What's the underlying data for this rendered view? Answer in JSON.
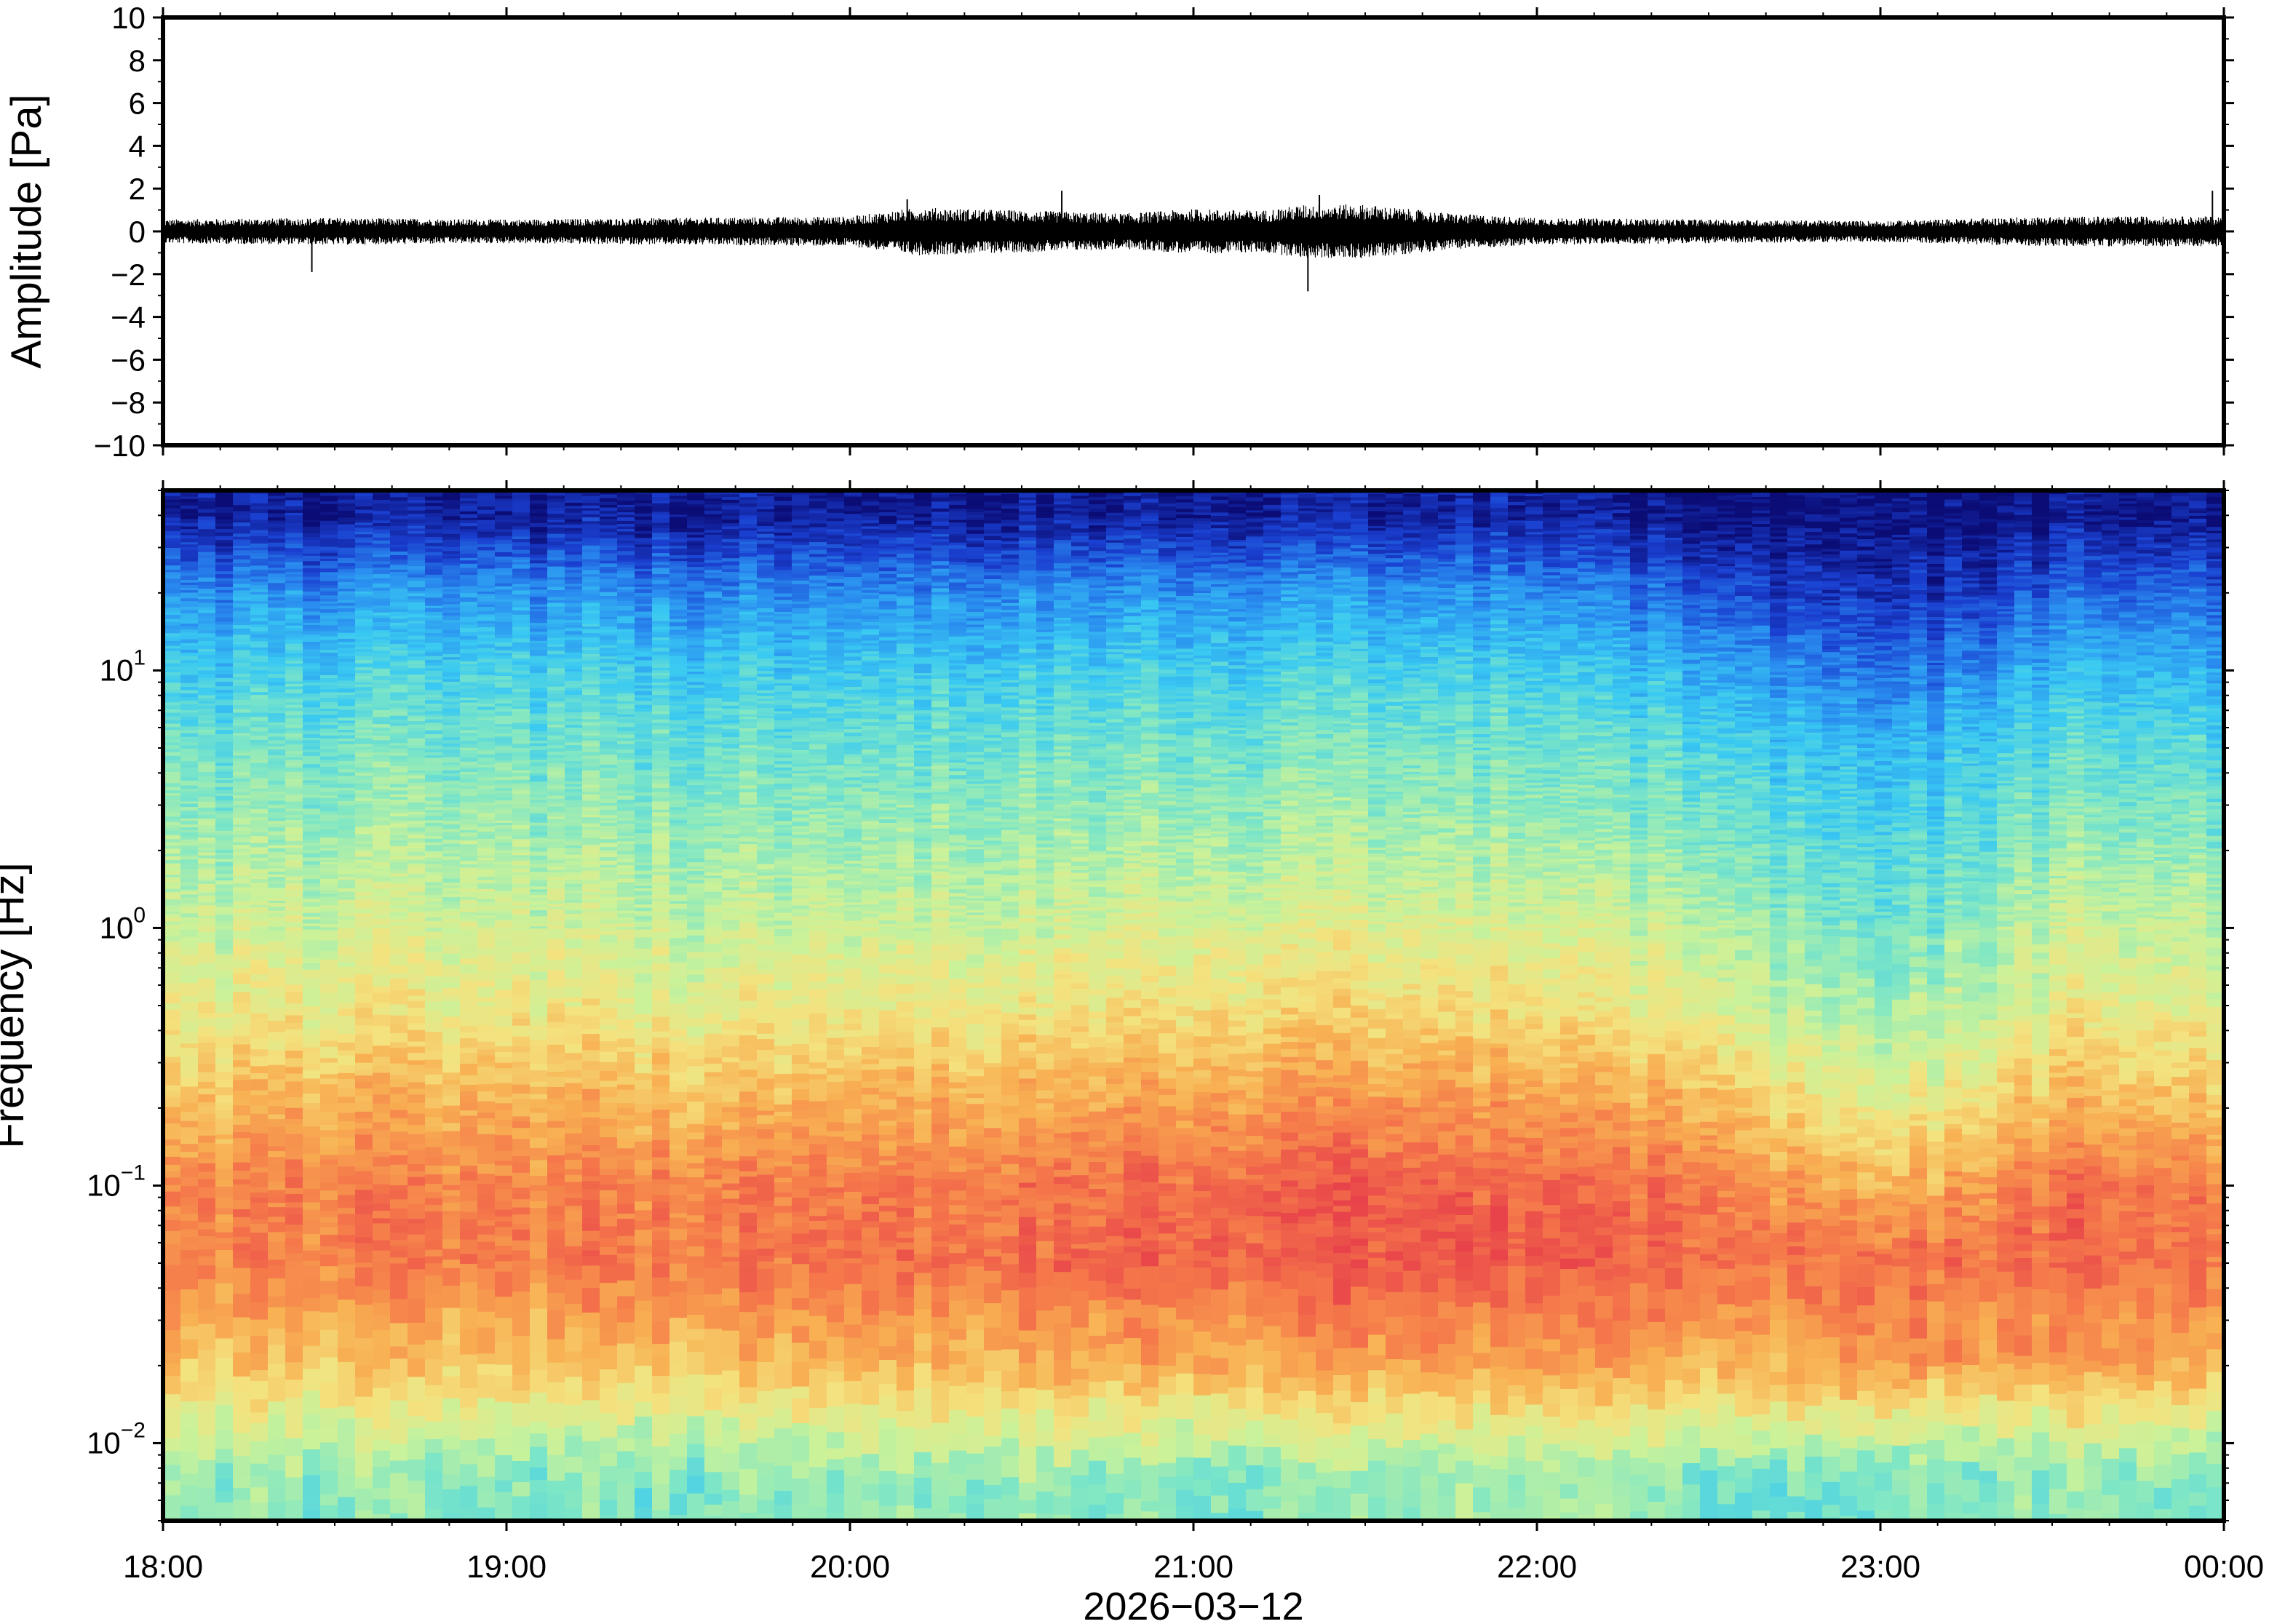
{
  "chart_data": [
    {
      "type": "line",
      "panel": "waveform",
      "ylabel": "Amplitude [Pa]",
      "ylim": [
        -10,
        10
      ],
      "yticks": [
        10,
        8,
        6,
        4,
        2,
        0,
        -2,
        -4,
        -6,
        -8,
        -10
      ],
      "ytick_labels": [
        "10",
        "8",
        "6",
        "4",
        "2",
        "0",
        "−2",
        "−4",
        "−6",
        "−8",
        "−10"
      ],
      "xlim": [
        "18:00",
        "00:00"
      ],
      "envelope": {
        "time_hours": [
          0.0,
          0.5,
          1.0,
          1.5,
          2.0,
          2.2,
          2.5,
          2.8,
          3.0,
          3.2,
          3.33,
          3.5,
          3.75,
          4.0,
          4.5,
          5.0,
          5.5,
          6.0
        ],
        "typical_amplitude_pa": [
          0.4,
          0.45,
          0.4,
          0.45,
          0.5,
          0.8,
          0.7,
          0.6,
          0.75,
          0.7,
          0.9,
          0.9,
          0.6,
          0.45,
          0.4,
          0.35,
          0.5,
          0.5
        ]
      },
      "spikes": [
        {
          "time": "18:26",
          "amplitude_pa": -1.9
        },
        {
          "time": "20:10",
          "amplitude_pa": 1.5
        },
        {
          "time": "20:37",
          "amplitude_pa": 1.9
        },
        {
          "time": "21:20",
          "amplitude_pa": -2.8
        },
        {
          "time": "21:22",
          "amplitude_pa": 1.7
        },
        {
          "time": "23:58",
          "amplitude_pa": 1.9
        }
      ]
    },
    {
      "type": "heatmap",
      "panel": "spectrogram",
      "ylabel": "Frequency [Hz]",
      "yscale": "log",
      "ylim": [
        0.005,
        50
      ],
      "yticks": [
        0.01,
        0.1,
        1,
        10
      ],
      "ytick_labels": [
        {
          "base": "10",
          "exp": "−2"
        },
        {
          "base": "10",
          "exp": "−1"
        },
        {
          "base": "10",
          "exp": "0"
        },
        {
          "base": "10",
          "exp": "1"
        }
      ],
      "xlabel": "2026−03−12",
      "xlim": [
        "18:00",
        "00:00"
      ],
      "xticks": [
        "18:00",
        "19:00",
        "20:00",
        "21:00",
        "22:00",
        "23:00",
        "00:00"
      ],
      "colormap": [
        "#0b0c75",
        "#1a3fd0",
        "#2a8ef0",
        "#39c9f2",
        "#7de6c6",
        "#c9f29a",
        "#f4e27e",
        "#f8b052",
        "#f5784a",
        "#e8434a"
      ],
      "time_bins_hours": [
        0.0,
        0.5,
        1.0,
        1.5,
        2.0,
        2.5,
        3.0,
        3.5,
        4.0,
        4.5,
        5.0,
        5.5,
        6.0
      ],
      "freq_bins_hz": [
        0.007,
        0.01,
        0.02,
        0.05,
        0.1,
        0.2,
        0.5,
        1,
        2,
        5,
        10,
        20,
        40
      ],
      "relative_power": [
        [
          0.48,
          0.48,
          0.45,
          0.45,
          0.48,
          0.5,
          0.45,
          0.48,
          0.5,
          0.45,
          0.42,
          0.48,
          0.45
        ],
        [
          0.55,
          0.55,
          0.52,
          0.52,
          0.55,
          0.58,
          0.55,
          0.55,
          0.58,
          0.55,
          0.52,
          0.55,
          0.55
        ],
        [
          0.72,
          0.74,
          0.72,
          0.74,
          0.76,
          0.78,
          0.78,
          0.8,
          0.8,
          0.78,
          0.82,
          0.8,
          0.78
        ],
        [
          0.86,
          0.88,
          0.88,
          0.88,
          0.9,
          0.92,
          0.94,
          0.95,
          0.94,
          0.92,
          0.9,
          0.92,
          0.9
        ],
        [
          0.84,
          0.88,
          0.86,
          0.86,
          0.88,
          0.9,
          0.92,
          0.94,
          0.92,
          0.9,
          0.74,
          0.9,
          0.88
        ],
        [
          0.74,
          0.78,
          0.78,
          0.76,
          0.78,
          0.8,
          0.82,
          0.84,
          0.8,
          0.78,
          0.6,
          0.76,
          0.76
        ],
        [
          0.62,
          0.64,
          0.64,
          0.62,
          0.64,
          0.66,
          0.68,
          0.68,
          0.66,
          0.62,
          0.48,
          0.62,
          0.62
        ],
        [
          0.56,
          0.58,
          0.58,
          0.56,
          0.56,
          0.58,
          0.6,
          0.6,
          0.58,
          0.56,
          0.4,
          0.56,
          0.56
        ],
        [
          0.5,
          0.52,
          0.52,
          0.5,
          0.5,
          0.52,
          0.52,
          0.52,
          0.5,
          0.48,
          0.36,
          0.48,
          0.48
        ],
        [
          0.42,
          0.44,
          0.44,
          0.42,
          0.42,
          0.44,
          0.44,
          0.44,
          0.42,
          0.4,
          0.28,
          0.4,
          0.4
        ],
        [
          0.34,
          0.36,
          0.36,
          0.34,
          0.34,
          0.36,
          0.36,
          0.36,
          0.34,
          0.3,
          0.16,
          0.3,
          0.3
        ],
        [
          0.22,
          0.24,
          0.24,
          0.22,
          0.22,
          0.24,
          0.24,
          0.24,
          0.22,
          0.16,
          0.06,
          0.16,
          0.18
        ],
        [
          0.04,
          0.04,
          0.04,
          0.04,
          0.04,
          0.04,
          0.04,
          0.04,
          0.04,
          0.02,
          0.0,
          0.02,
          0.03
        ]
      ]
    }
  ]
}
